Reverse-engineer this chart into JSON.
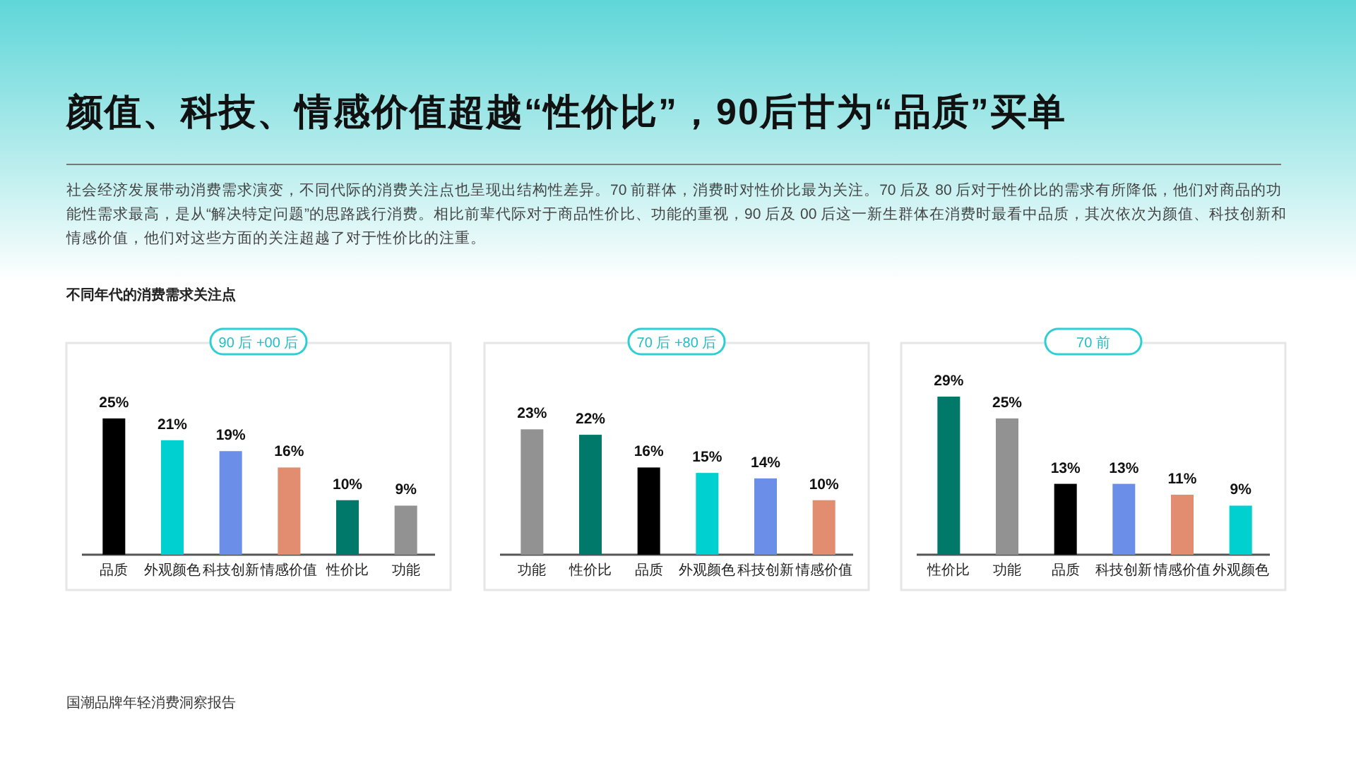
{
  "chart_data": [
    {
      "type": "other",
      "title": "颜值、科技、情感价值超越“性价比”，90后甘为“品质”买单",
      "subtitle": "社会经济发展带动消费需求演变，不同代际的消费关注点也呈现出结构性差异。70 前群体，消费时对性价比最为关注。70 后及 80 后对于性价比的需求有所降低，他们对商品的功能性需求最高，是从“解决特定问题”的思路践行消费。相比前辈代际对于商品性价比、功能的重视，90 后及 00 后这一新生群体在消费时最看中品质，其次依次为颜值、科技创新和情感价值，他们对这些方面的关注超越了对于性价比的注重。",
      "annotations": [
        "不同年代的消费需求关注点",
        "国潮品牌年轻消费洞察报告"
      ]
    },
    {
      "type": "bar",
      "title": "90 后 +00 后",
      "categories": [
        "品质",
        "外观颜色",
        "科技创新",
        "情感价值",
        "性价比",
        "功能"
      ],
      "values": [
        25,
        21,
        19,
        16,
        10,
        9
      ],
      "value_labels": [
        "25%",
        "21%",
        "19%",
        "16%",
        "10%",
        "9%"
      ],
      "colors": [
        "#000000",
        "#00d0d0",
        "#6b8fe8",
        "#e28c70",
        "#00796b",
        "#929292"
      ]
    },
    {
      "type": "bar",
      "title": "70 后 +80 后",
      "categories": [
        "功能",
        "性价比",
        "品质",
        "外观颜色",
        "科技创新",
        "情感价值"
      ],
      "values": [
        23,
        22,
        16,
        15,
        14,
        10
      ],
      "value_labels": [
        "23%",
        "22%",
        "16%",
        "15%",
        "14%",
        "10%"
      ],
      "colors": [
        "#929292",
        "#00796b",
        "#000000",
        "#00d0d0",
        "#6b8fe8",
        "#e28c70"
      ]
    },
    {
      "type": "bar",
      "title": "70 前",
      "categories": [
        "性价比",
        "功能",
        "品质",
        "科技创新",
        "情感价值",
        "外观颜色"
      ],
      "values": [
        29,
        25,
        13,
        13,
        11,
        9
      ],
      "value_labels": [
        "29%",
        "25%",
        "13%",
        "13%",
        "11%",
        "9%"
      ],
      "colors": [
        "#00796b",
        "#929292",
        "#000000",
        "#6b8fe8",
        "#e28c70",
        "#00d0d0"
      ]
    }
  ]
}
